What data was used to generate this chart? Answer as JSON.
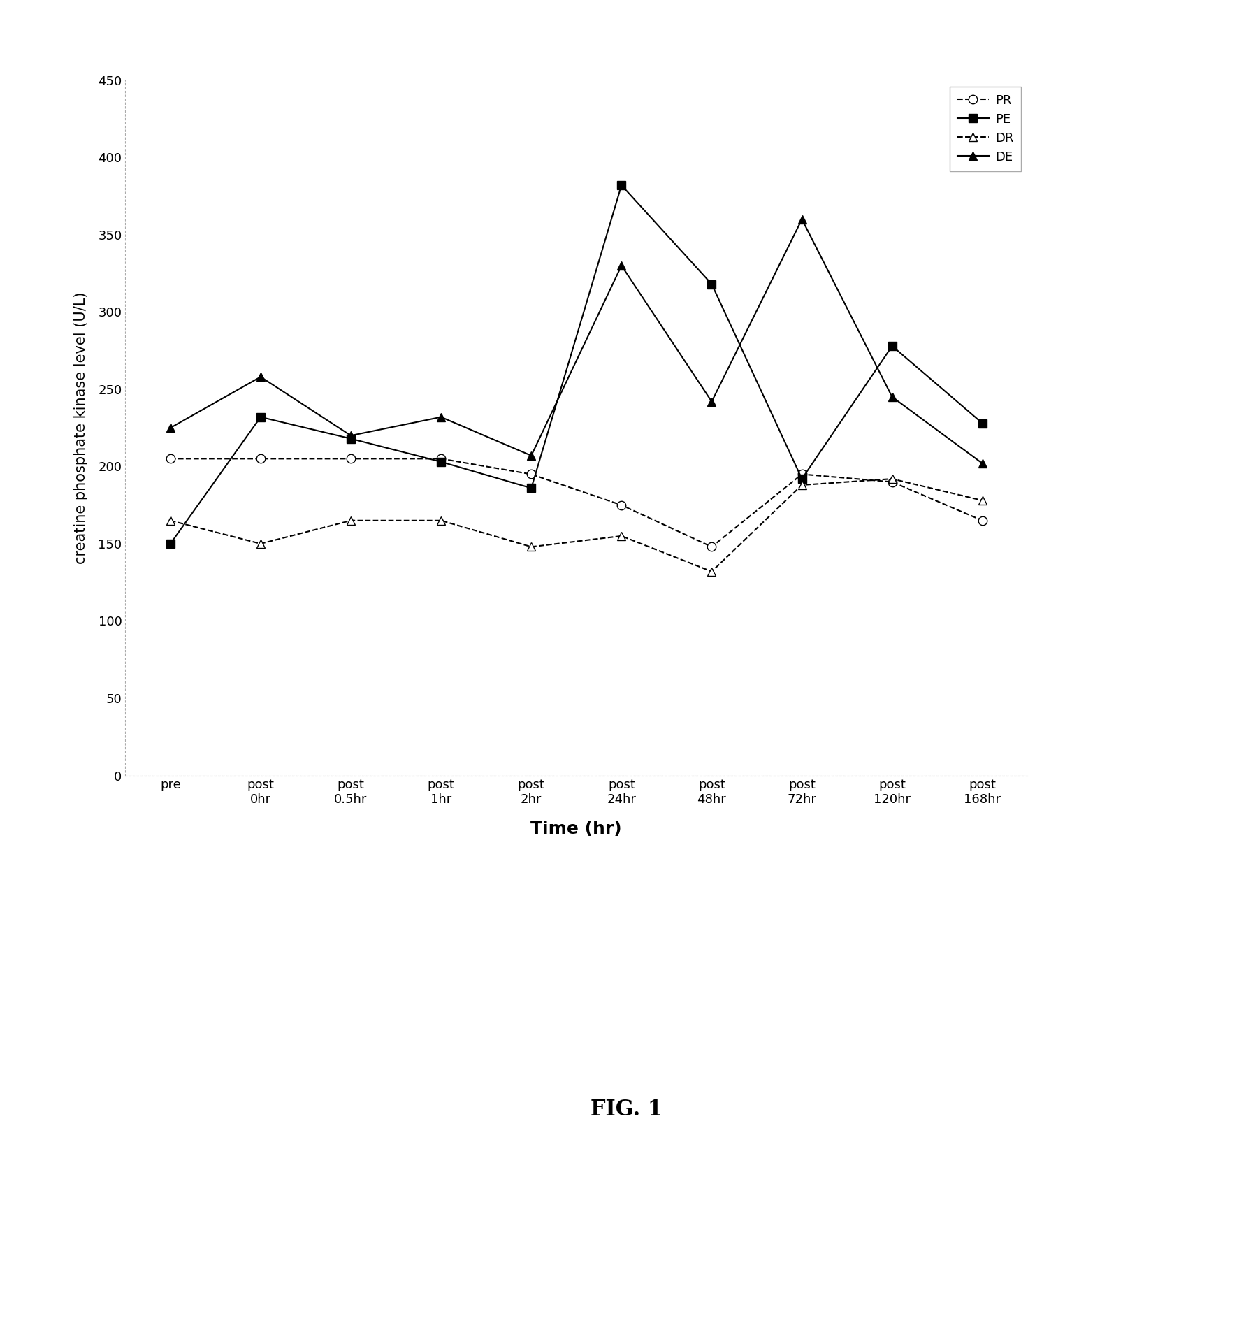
{
  "x_labels": [
    "pre",
    "post\n0hr",
    "post\n0.5hr",
    "post\n1hr",
    "post\n2hr",
    "post\n24hr",
    "post\n48hr",
    "post\n72hr",
    "post\n120hr",
    "post\n168hr"
  ],
  "PR": [
    205,
    205,
    205,
    205,
    195,
    175,
    148,
    195,
    190,
    165
  ],
  "PE": [
    150,
    232,
    218,
    203,
    186,
    382,
    318,
    192,
    278,
    228
  ],
  "DR": [
    165,
    150,
    165,
    165,
    148,
    155,
    132,
    188,
    192,
    178
  ],
  "DE": [
    225,
    258,
    220,
    232,
    207,
    330,
    242,
    360,
    245,
    202
  ],
  "ylabel": "creatine phosphate kinase level (U/L)",
  "xlabel": "Time (hr)",
  "ylim": [
    0,
    450
  ],
  "yticks": [
    0,
    50,
    100,
    150,
    200,
    250,
    300,
    350,
    400,
    450
  ],
  "fig_label": "FIG. 1",
  "background_color": "#ffffff",
  "axis_fontsize": 15,
  "tick_fontsize": 13,
  "xlabel_fontsize": 18,
  "fig_label_fontsize": 22
}
